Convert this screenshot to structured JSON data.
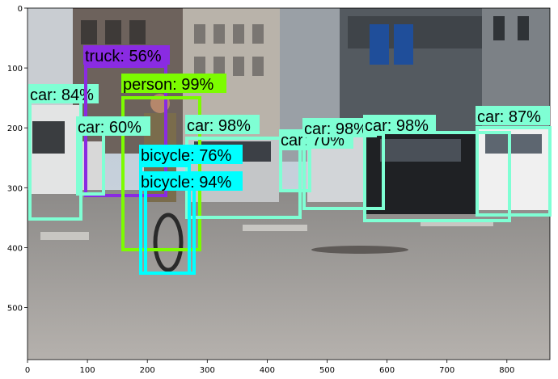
{
  "plot": {
    "x_ticks": [
      "0",
      "100",
      "200",
      "300",
      "400",
      "500",
      "600",
      "700",
      "800"
    ],
    "y_ticks": [
      "0",
      "100",
      "200",
      "300",
      "400",
      "500"
    ]
  },
  "image_content": "street scene with cars, a cyclist and buildings",
  "detections": [
    {
      "label": "car: 84%",
      "color": "#7FFFD4"
    },
    {
      "label": "truck: 56%",
      "color": "#8A2BE2"
    },
    {
      "label": "person: 99%",
      "color": "#7CFC00"
    },
    {
      "label": "car: 60%",
      "color": "#7FFFD4"
    },
    {
      "label": "car: 98%",
      "color": "#7FFFD4"
    },
    {
      "label": "bicycle: 76%",
      "color": "#00FFFF"
    },
    {
      "label": "bicycle: 94%",
      "color": "#00FFFF"
    },
    {
      "label": "car: 70%",
      "color": "#7FFFD4"
    },
    {
      "label": "car: 98%",
      "color": "#7FFFD4"
    },
    {
      "label": "car: 98%",
      "color": "#7FFFD4"
    },
    {
      "label": "car: 87%",
      "color": "#7FFFD4"
    }
  ]
}
